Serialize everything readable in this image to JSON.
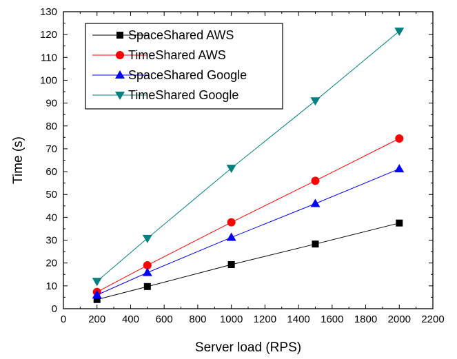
{
  "chart_data": {
    "type": "line",
    "xlabel": "Server load (RPS)",
    "ylabel": "Time (s)",
    "xlim": [
      0,
      2200
    ],
    "ylim": [
      0,
      130
    ],
    "xticks": [
      0,
      200,
      400,
      600,
      800,
      1000,
      1200,
      1400,
      1600,
      1800,
      2000,
      2200
    ],
    "yticks": [
      0,
      10,
      20,
      30,
      40,
      50,
      60,
      70,
      80,
      90,
      100,
      110,
      120,
      130
    ],
    "grid": false,
    "legend_position": "top-left",
    "x": [
      200,
      500,
      1000,
      1500,
      2000
    ],
    "series": [
      {
        "name": "SpaceShared AWS",
        "values": [
          4,
          9.7,
          19.3,
          28.3,
          37.5
        ],
        "color": "#000000",
        "marker": "square"
      },
      {
        "name": "TimeShared AWS",
        "values": [
          7.3,
          19,
          37.8,
          56,
          74.5
        ],
        "color": "#ff0000",
        "marker": "circle"
      },
      {
        "name": "SpaceShared Google",
        "values": [
          6,
          15.8,
          31.2,
          46,
          61.2
        ],
        "color": "#0000ff",
        "marker": "triangle-up"
      },
      {
        "name": "TimeShared Google",
        "values": [
          12,
          30.8,
          61.5,
          91,
          121.5
        ],
        "color": "#008080",
        "marker": "triangle-down"
      }
    ]
  }
}
